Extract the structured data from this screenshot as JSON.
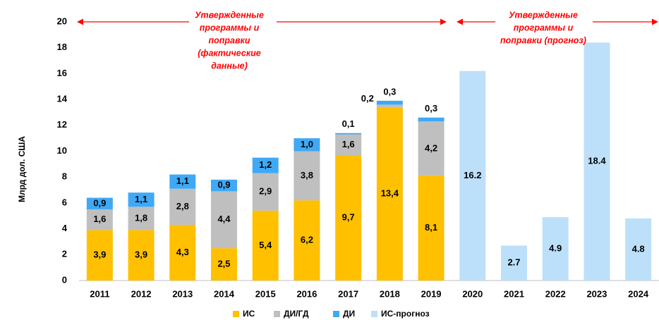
{
  "chart_data": {
    "type": "stacked_bar",
    "y_label": "Млрд дол. США",
    "categories": [
      "2011",
      "2012",
      "2013",
      "2014",
      "2015",
      "2016",
      "2017",
      "2018",
      "2019",
      "2020",
      "2021",
      "2022",
      "2023",
      "2024"
    ],
    "series": [
      {
        "name": "ИС",
        "color": "#FFC000",
        "values": [
          3.9,
          3.9,
          4.3,
          2.5,
          5.4,
          6.2,
          9.7,
          13.4,
          8.1,
          null,
          null,
          null,
          null,
          null
        ],
        "value_labels": [
          "3,9",
          "3,9",
          "4,3",
          "2,5",
          "5,4",
          "6,2",
          "9,7",
          "13,4",
          "8,1",
          null,
          null,
          null,
          null,
          null
        ]
      },
      {
        "name": "ДИ/ГД",
        "color": "#BFBFBF",
        "values": [
          1.6,
          1.8,
          2.8,
          4.4,
          2.9,
          3.8,
          1.6,
          0.2,
          4.2,
          null,
          null,
          null,
          null,
          null
        ],
        "value_labels": [
          "1,6",
          "1,8",
          "2,8",
          "4,4",
          "2,9",
          "3,8",
          "1,6",
          "0,2",
          "4,2",
          null,
          null,
          null,
          null,
          null
        ]
      },
      {
        "name": "ДИ",
        "color": "#3FA9F5",
        "values": [
          0.9,
          1.1,
          1.1,
          0.9,
          1.2,
          1.0,
          0.1,
          0.3,
          0.3,
          null,
          null,
          null,
          null,
          null
        ],
        "value_labels": [
          "0,9",
          "1,1",
          "1,1",
          "0,9",
          "1,2",
          "1,0",
          "0,1",
          "0,3",
          "0,3",
          null,
          null,
          null,
          null,
          null
        ]
      },
      {
        "name": "ИС-прогноз",
        "color": "#BDE0FA",
        "values": [
          null,
          null,
          null,
          null,
          null,
          null,
          null,
          null,
          null,
          16.2,
          2.7,
          4.9,
          18.4,
          4.8
        ]
      }
    ],
    "ylim": [
      0,
      20
    ],
    "yticks": [
      0,
      2,
      4,
      6,
      8,
      10,
      12,
      14,
      16,
      18,
      20
    ],
    "annotations": [
      {
        "lines": [
          "Утвержденные",
          "программы и",
          "поправки",
          "(фактические",
          "данные)"
        ],
        "color": "#FF0000"
      },
      {
        "lines": [
          "Утвержденные",
          "программы и",
          "поправки (прогноз)"
        ],
        "color": "#FF0000"
      }
    ],
    "legend": "bottom"
  }
}
